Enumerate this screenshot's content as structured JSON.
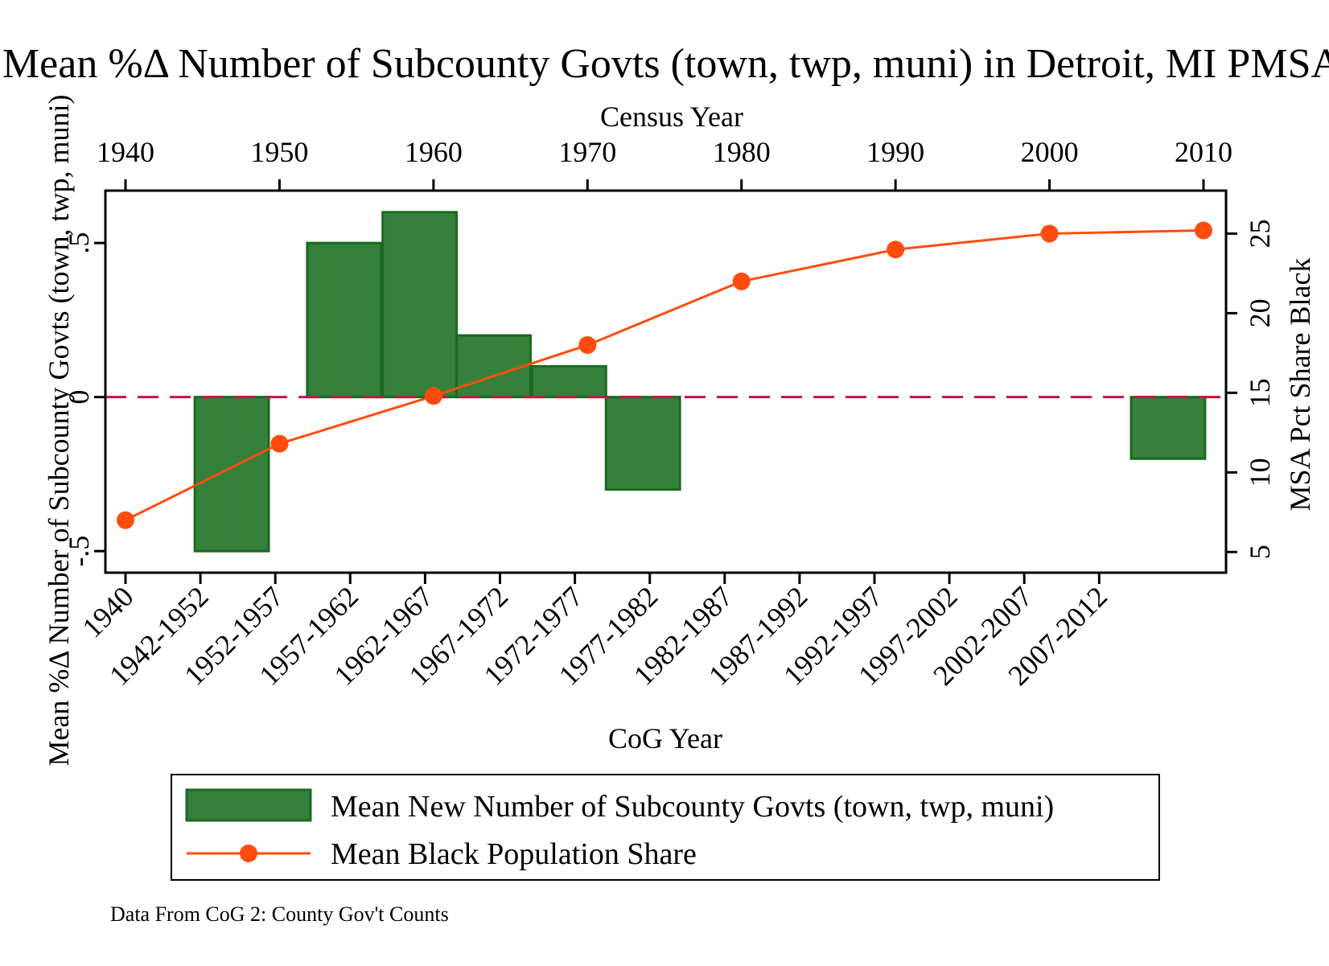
{
  "chart_data": {
    "type": "bar",
    "title": "Mean %Δ Number of Subcounty Govts (town, twp, muni) in Detroit, MI PMSA",
    "note": "Data From CoG 2: County Gov't Counts",
    "left_axis": {
      "label": "Mean %Δ Number of Subcounty Govts (town, twp, muni)",
      "ylim": [
        -0.57,
        0.67
      ],
      "ticks": [
        -0.5,
        0,
        0.5
      ],
      "tick_labels": [
        "-.5",
        "0",
        ".5"
      ]
    },
    "bottom_axis": {
      "label": "CoG Year",
      "categories": [
        "1940",
        "1942-1952",
        "1952-1957",
        "1957-1962",
        "1962-1967",
        "1967-1972",
        "1972-1977",
        "1977-1982",
        "1982-1987",
        "1987-1992",
        "1992-1997",
        "1997-2002",
        "2002-2007",
        "2007-2012"
      ]
    },
    "top_axis": {
      "label": "Census Year",
      "xlim": [
        1940,
        2010
      ],
      "ticks": [
        1940,
        1950,
        1960,
        1970,
        1980,
        1990,
        2000,
        2010
      ],
      "tick_labels": [
        "1940",
        "1950",
        "1960",
        "1970",
        "1980",
        "1990",
        "2000",
        "2010"
      ]
    },
    "right_axis": {
      "label": "MSA Pct Share Black",
      "ylim": [
        3.7,
        27.7
      ],
      "ticks": [
        5,
        10,
        15,
        20,
        25
      ],
      "tick_labels": [
        "5",
        "10",
        "15",
        "20",
        "25"
      ]
    },
    "series": [
      {
        "name": "Mean New Number of Subcounty Govts (town, twp, muni)",
        "type": "bar",
        "color": "#35803a",
        "bars": [
          {
            "x0": 1944.5,
            "x1": 1949.3,
            "value": -0.5
          },
          {
            "x0": 1951.8,
            "x1": 1956.6,
            "value": 0.5
          },
          {
            "x0": 1956.7,
            "x1": 1961.5,
            "value": 0.6
          },
          {
            "x0": 1961.5,
            "x1": 1966.3,
            "value": 0.2
          },
          {
            "x0": 1966.4,
            "x1": 1971.2,
            "value": 0.1
          },
          {
            "x0": 1971.2,
            "x1": 1976.0,
            "value": -0.3
          },
          {
            "x0": 2005.3,
            "x1": 2010.1,
            "value": -0.2
          }
        ]
      },
      {
        "name": "Mean Black Population Share",
        "type": "line",
        "color": "#ff4c0e",
        "points": [
          {
            "x": 1940,
            "y": 7.0
          },
          {
            "x": 1950,
            "y": 11.8
          },
          {
            "x": 1960,
            "y": 14.8
          },
          {
            "x": 1970,
            "y": 18.0
          },
          {
            "x": 1980,
            "y": 22.0
          },
          {
            "x": 1990,
            "y": 24.0
          },
          {
            "x": 2000,
            "y": 25.0
          },
          {
            "x": 2010,
            "y": 25.2
          }
        ]
      }
    ],
    "reference_line": {
      "value": 0,
      "color": "#c0174a",
      "style": "dashed"
    },
    "legend_placement": "bottom",
    "grid": false
  }
}
